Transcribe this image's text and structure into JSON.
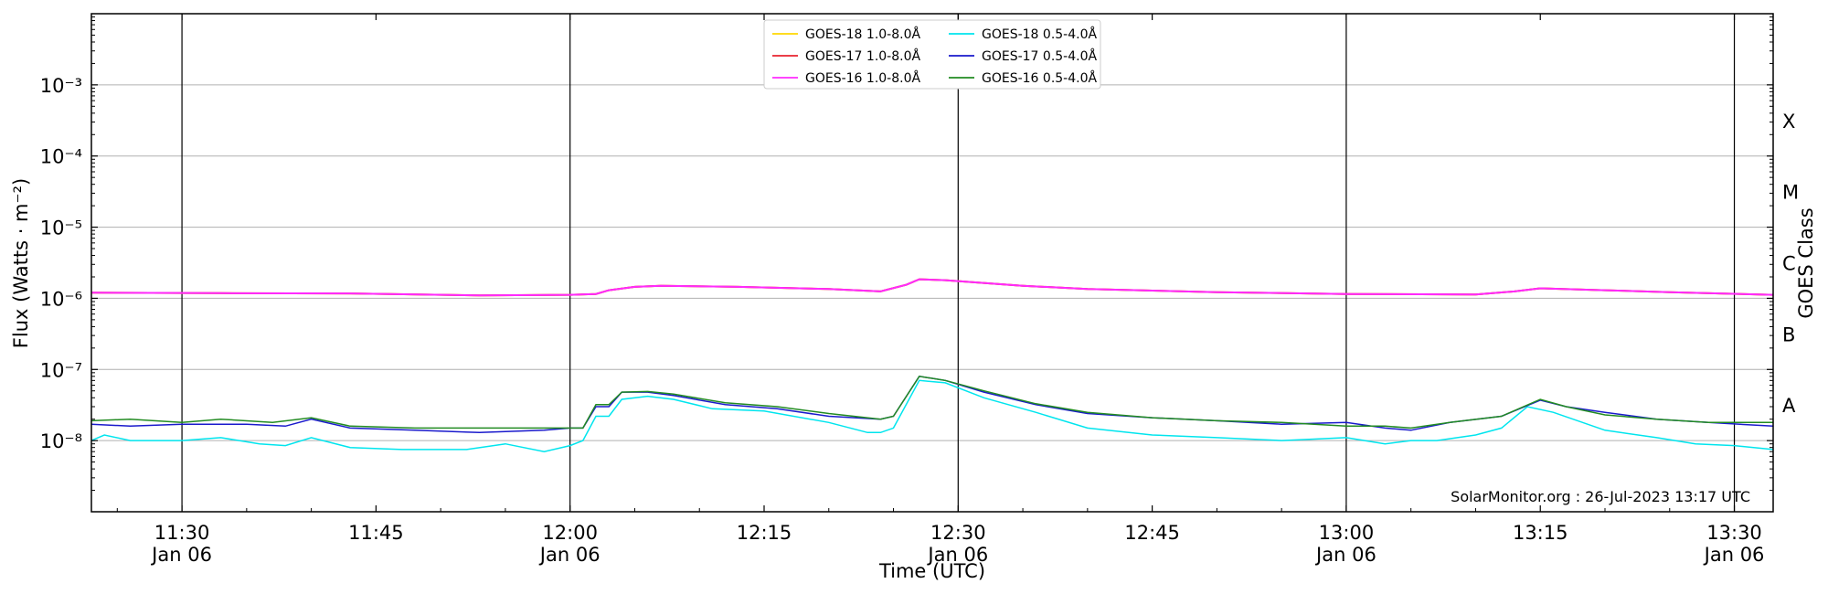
{
  "chart_data": {
    "type": "line",
    "xlabel": "Time (UTC)",
    "ylabel": "Flux (Watts · m⁻²)",
    "right_ylabel": "GOES Class",
    "credit": "SolarMonitor.org : 26-Jul-2023 13:17 UTC",
    "y_scale": "log",
    "ylim": [
      1e-09,
      0.01
    ],
    "xlim": [
      "11:23",
      "13:33"
    ],
    "legend_position": "top-center",
    "grid": "horizontal at decades, vertical at 30-minute marks",
    "x_ticks": [
      {
        "time": "11:30",
        "label": "11:30",
        "sublabel": "Jan 06"
      },
      {
        "time": "11:45",
        "label": "11:45",
        "sublabel": ""
      },
      {
        "time": "12:00",
        "label": "12:00",
        "sublabel": "Jan 06"
      },
      {
        "time": "12:15",
        "label": "12:15",
        "sublabel": ""
      },
      {
        "time": "12:30",
        "label": "12:30",
        "sublabel": "Jan 06"
      },
      {
        "time": "12:45",
        "label": "12:45",
        "sublabel": ""
      },
      {
        "time": "13:00",
        "label": "13:00",
        "sublabel": "Jan 06"
      },
      {
        "time": "13:15",
        "label": "13:15",
        "sublabel": ""
      },
      {
        "time": "13:30",
        "label": "13:30",
        "sublabel": "Jan 06"
      }
    ],
    "vertical_lines": [
      "11:30",
      "12:00",
      "12:30",
      "13:00",
      "13:30"
    ],
    "y_ticks": [
      {
        "exp": -8,
        "label": "10⁻⁸"
      },
      {
        "exp": -7,
        "label": "10⁻⁷"
      },
      {
        "exp": -6,
        "label": "10⁻⁶"
      },
      {
        "exp": -5,
        "label": "10⁻⁵"
      },
      {
        "exp": -4,
        "label": "10⁻⁴"
      },
      {
        "exp": -3,
        "label": "10⁻³"
      }
    ],
    "goes_classes": [
      {
        "label": "A",
        "center_exp": -7.5
      },
      {
        "label": "B",
        "center_exp": -6.5
      },
      {
        "label": "C",
        "center_exp": -5.5
      },
      {
        "label": "M",
        "center_exp": -4.5
      },
      {
        "label": "X",
        "center_exp": -3.5
      }
    ],
    "series": [
      {
        "name": "GOES-18 1.0-8.0Å",
        "color": "#ffd700",
        "values": [
          [
            "11:23",
            1.2e-06
          ],
          [
            "11:33",
            1.18e-06
          ],
          [
            "11:43",
            1.17e-06
          ],
          [
            "11:53",
            1.1e-06
          ],
          [
            "12:00",
            1.12e-06
          ],
          [
            "12:02",
            1.15e-06
          ],
          [
            "12:03",
            1.3e-06
          ],
          [
            "12:05",
            1.45e-06
          ],
          [
            "12:07",
            1.5e-06
          ],
          [
            "12:13",
            1.45e-06
          ],
          [
            "12:20",
            1.35e-06
          ],
          [
            "12:24",
            1.25e-06
          ],
          [
            "12:26",
            1.55e-06
          ],
          [
            "12:27",
            1.85e-06
          ],
          [
            "12:29",
            1.8e-06
          ],
          [
            "12:35",
            1.5e-06
          ],
          [
            "12:40",
            1.35e-06
          ],
          [
            "12:50",
            1.22e-06
          ],
          [
            "13:00",
            1.15e-06
          ],
          [
            "13:10",
            1.13e-06
          ],
          [
            "13:13",
            1.25e-06
          ],
          [
            "13:15",
            1.38e-06
          ],
          [
            "13:20",
            1.3e-06
          ],
          [
            "13:25",
            1.22e-06
          ],
          [
            "13:33",
            1.12e-06
          ]
        ]
      },
      {
        "name": "GOES-17 1.0-8.0Å",
        "color": "#e8222e",
        "values": [
          [
            "11:23",
            1.2e-06
          ],
          [
            "11:33",
            1.18e-06
          ],
          [
            "11:43",
            1.17e-06
          ],
          [
            "11:53",
            1.1e-06
          ],
          [
            "12:00",
            1.12e-06
          ],
          [
            "12:02",
            1.15e-06
          ],
          [
            "12:03",
            1.3e-06
          ],
          [
            "12:05",
            1.45e-06
          ],
          [
            "12:07",
            1.5e-06
          ],
          [
            "12:13",
            1.45e-06
          ],
          [
            "12:20",
            1.35e-06
          ],
          [
            "12:24",
            1.25e-06
          ],
          [
            "12:26",
            1.55e-06
          ],
          [
            "12:27",
            1.85e-06
          ],
          [
            "12:29",
            1.8e-06
          ],
          [
            "12:35",
            1.5e-06
          ],
          [
            "12:40",
            1.35e-06
          ],
          [
            "12:50",
            1.22e-06
          ],
          [
            "13:00",
            1.15e-06
          ],
          [
            "13:10",
            1.13e-06
          ],
          [
            "13:13",
            1.25e-06
          ],
          [
            "13:15",
            1.38e-06
          ],
          [
            "13:20",
            1.3e-06
          ],
          [
            "13:25",
            1.22e-06
          ],
          [
            "13:33",
            1.12e-06
          ]
        ]
      },
      {
        "name": "GOES-16 1.0-8.0Å",
        "color": "#ff2bff",
        "values": [
          [
            "11:23",
            1.2e-06
          ],
          [
            "11:33",
            1.18e-06
          ],
          [
            "11:43",
            1.17e-06
          ],
          [
            "11:53",
            1.1e-06
          ],
          [
            "12:00",
            1.12e-06
          ],
          [
            "12:02",
            1.15e-06
          ],
          [
            "12:03",
            1.3e-06
          ],
          [
            "12:05",
            1.45e-06
          ],
          [
            "12:07",
            1.5e-06
          ],
          [
            "12:13",
            1.45e-06
          ],
          [
            "12:20",
            1.35e-06
          ],
          [
            "12:24",
            1.25e-06
          ],
          [
            "12:26",
            1.55e-06
          ],
          [
            "12:27",
            1.85e-06
          ],
          [
            "12:29",
            1.8e-06
          ],
          [
            "12:35",
            1.5e-06
          ],
          [
            "12:40",
            1.35e-06
          ],
          [
            "12:50",
            1.22e-06
          ],
          [
            "13:00",
            1.15e-06
          ],
          [
            "13:10",
            1.13e-06
          ],
          [
            "13:13",
            1.25e-06
          ],
          [
            "13:15",
            1.38e-06
          ],
          [
            "13:20",
            1.3e-06
          ],
          [
            "13:25",
            1.22e-06
          ],
          [
            "13:33",
            1.12e-06
          ]
        ]
      },
      {
        "name": "GOES-18 0.5-4.0Å",
        "color": "#00e5ee",
        "values": [
          [
            "11:23",
            1e-08
          ],
          [
            "11:24",
            1.2e-08
          ],
          [
            "11:26",
            1e-08
          ],
          [
            "11:30",
            1e-08
          ],
          [
            "11:33",
            1.1e-08
          ],
          [
            "11:36",
            9e-09
          ],
          [
            "11:38",
            8.5e-09
          ],
          [
            "11:40",
            1.1e-08
          ],
          [
            "11:43",
            8e-09
          ],
          [
            "11:47",
            7.5e-09
          ],
          [
            "11:52",
            7.5e-09
          ],
          [
            "11:55",
            9e-09
          ],
          [
            "11:58",
            7e-09
          ],
          [
            "12:00",
            8.5e-09
          ],
          [
            "12:01",
            1e-08
          ],
          [
            "12:02",
            2.2e-08
          ],
          [
            "12:03",
            2.2e-08
          ],
          [
            "12:04",
            3.8e-08
          ],
          [
            "12:06",
            4.2e-08
          ],
          [
            "12:08",
            3.8e-08
          ],
          [
            "12:11",
            2.8e-08
          ],
          [
            "12:15",
            2.6e-08
          ],
          [
            "12:20",
            1.8e-08
          ],
          [
            "12:23",
            1.3e-08
          ],
          [
            "12:24",
            1.3e-08
          ],
          [
            "12:25",
            1.5e-08
          ],
          [
            "12:27",
            7e-08
          ],
          [
            "12:29",
            6.5e-08
          ],
          [
            "12:32",
            4e-08
          ],
          [
            "12:36",
            2.5e-08
          ],
          [
            "12:40",
            1.5e-08
          ],
          [
            "12:45",
            1.2e-08
          ],
          [
            "12:50",
            1.1e-08
          ],
          [
            "12:55",
            1e-08
          ],
          [
            "13:00",
            1.1e-08
          ],
          [
            "13:03",
            9e-09
          ],
          [
            "13:05",
            1e-08
          ],
          [
            "13:07",
            1e-08
          ],
          [
            "13:10",
            1.2e-08
          ],
          [
            "13:12",
            1.5e-08
          ],
          [
            "13:14",
            3e-08
          ],
          [
            "13:16",
            2.5e-08
          ],
          [
            "13:20",
            1.4e-08
          ],
          [
            "13:24",
            1.1e-08
          ],
          [
            "13:27",
            9e-09
          ],
          [
            "13:30",
            8.5e-09
          ],
          [
            "13:33",
            7.5e-09
          ]
        ]
      },
      {
        "name": "GOES-17 0.5-4.0Å",
        "color": "#1a1acc",
        "values": [
          [
            "11:23",
            1.7e-08
          ],
          [
            "11:26",
            1.6e-08
          ],
          [
            "11:30",
            1.7e-08
          ],
          [
            "11:35",
            1.7e-08
          ],
          [
            "11:38",
            1.6e-08
          ],
          [
            "11:40",
            2e-08
          ],
          [
            "11:43",
            1.5e-08
          ],
          [
            "11:48",
            1.4e-08
          ],
          [
            "11:53",
            1.3e-08
          ],
          [
            "11:58",
            1.4e-08
          ],
          [
            "12:00",
            1.5e-08
          ],
          [
            "12:01",
            1.5e-08
          ],
          [
            "12:02",
            3e-08
          ],
          [
            "12:03",
            3e-08
          ],
          [
            "12:04",
            4.8e-08
          ],
          [
            "12:06",
            4.8e-08
          ],
          [
            "12:08",
            4.3e-08
          ],
          [
            "12:12",
            3.2e-08
          ],
          [
            "12:16",
            2.8e-08
          ],
          [
            "12:20",
            2.2e-08
          ],
          [
            "12:24",
            2e-08
          ],
          [
            "12:25",
            2.2e-08
          ],
          [
            "12:27",
            8e-08
          ],
          [
            "12:29",
            7e-08
          ],
          [
            "12:32",
            4.8e-08
          ],
          [
            "12:36",
            3.2e-08
          ],
          [
            "12:40",
            2.4e-08
          ],
          [
            "12:45",
            2.1e-08
          ],
          [
            "12:50",
            1.9e-08
          ],
          [
            "12:55",
            1.7e-08
          ],
          [
            "13:00",
            1.8e-08
          ],
          [
            "13:03",
            1.5e-08
          ],
          [
            "13:05",
            1.4e-08
          ],
          [
            "13:08",
            1.8e-08
          ],
          [
            "13:12",
            2.2e-08
          ],
          [
            "13:15",
            3.7e-08
          ],
          [
            "13:17",
            3e-08
          ],
          [
            "13:20",
            2.5e-08
          ],
          [
            "13:24",
            2e-08
          ],
          [
            "13:28",
            1.8e-08
          ],
          [
            "13:33",
            1.6e-08
          ]
        ]
      },
      {
        "name": "GOES-16 0.5-4.0Å",
        "color": "#228b22",
        "values": [
          [
            "11:23",
            1.9e-08
          ],
          [
            "11:26",
            2e-08
          ],
          [
            "11:30",
            1.8e-08
          ],
          [
            "11:33",
            2e-08
          ],
          [
            "11:37",
            1.8e-08
          ],
          [
            "11:40",
            2.1e-08
          ],
          [
            "11:43",
            1.6e-08
          ],
          [
            "11:48",
            1.5e-08
          ],
          [
            "11:53",
            1.5e-08
          ],
          [
            "11:58",
            1.5e-08
          ],
          [
            "12:00",
            1.5e-08
          ],
          [
            "12:01",
            1.5e-08
          ],
          [
            "12:02",
            3.2e-08
          ],
          [
            "12:03",
            3.2e-08
          ],
          [
            "12:04",
            4.8e-08
          ],
          [
            "12:06",
            4.9e-08
          ],
          [
            "12:08",
            4.5e-08
          ],
          [
            "12:12",
            3.4e-08
          ],
          [
            "12:16",
            3e-08
          ],
          [
            "12:20",
            2.4e-08
          ],
          [
            "12:24",
            2e-08
          ],
          [
            "12:25",
            2.2e-08
          ],
          [
            "12:27",
            8e-08
          ],
          [
            "12:29",
            7e-08
          ],
          [
            "12:32",
            5e-08
          ],
          [
            "12:36",
            3.3e-08
          ],
          [
            "12:40",
            2.5e-08
          ],
          [
            "12:45",
            2.1e-08
          ],
          [
            "12:50",
            1.9e-08
          ],
          [
            "12:55",
            1.8e-08
          ],
          [
            "13:00",
            1.6e-08
          ],
          [
            "13:03",
            1.6e-08
          ],
          [
            "13:05",
            1.5e-08
          ],
          [
            "13:08",
            1.8e-08
          ],
          [
            "13:12",
            2.2e-08
          ],
          [
            "13:15",
            3.8e-08
          ],
          [
            "13:17",
            3e-08
          ],
          [
            "13:20",
            2.3e-08
          ],
          [
            "13:24",
            2e-08
          ],
          [
            "13:28",
            1.8e-08
          ],
          [
            "13:33",
            1.8e-08
          ]
        ]
      }
    ]
  }
}
